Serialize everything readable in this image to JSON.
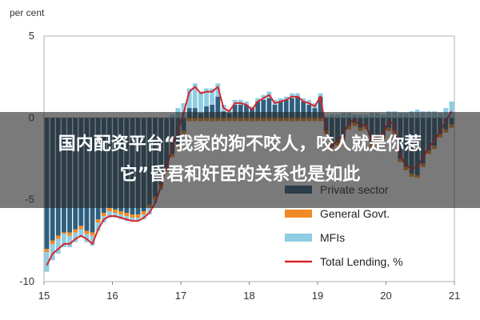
{
  "chart_data": {
    "type": "bar",
    "y_unit_label": "per cent",
    "ylim": [
      -10,
      5
    ],
    "yticks": [
      "5",
      "0",
      "-5",
      "-10"
    ],
    "xticks": [
      "15",
      "16",
      "17",
      "18",
      "19",
      "20",
      "21"
    ],
    "legend_position": "bottom-right",
    "grid": false,
    "colors": {
      "private_sector": "#2e5f7f",
      "general_govt": "#f08a24",
      "mfis": "#8fcde3",
      "total_lending": "#d7262b"
    },
    "series": [
      {
        "name": "Private sector",
        "values": [
          -8.0,
          -7.5,
          -7.2,
          -7.0,
          -7.0,
          -6.8,
          -6.6,
          -6.9,
          -7.0,
          -6.2,
          -5.8,
          -5.5,
          -5.6,
          -5.7,
          -5.8,
          -5.9,
          -5.9,
          -5.7,
          -5.3,
          -4.8,
          -4.1,
          -3.1,
          -2.2,
          -1.6,
          -0.8,
          0.6,
          0.6,
          0.3,
          0.7,
          0.8,
          1.3,
          0.4,
          0.3,
          0.8,
          0.8,
          0.8,
          0.6,
          1.0,
          1.1,
          1.2,
          0.8,
          1.0,
          1.1,
          1.2,
          1.3,
          1.0,
          0.8,
          0.6,
          1.3,
          -0.8,
          -1.8,
          -1.5,
          -1.2,
          -0.5,
          -0.3,
          -0.6,
          -0.5,
          -1.6,
          -1.3,
          -1.1,
          -0.6,
          -0.8,
          -2.5,
          -3.0,
          -3.4,
          -3.5,
          -2.8,
          -2.0,
          -1.7,
          -1.0,
          -0.7,
          -0.4
        ]
      },
      {
        "name": "General Govt.",
        "values": [
          -0.2,
          -0.2,
          -0.2,
          -0.1,
          -0.2,
          -0.2,
          -0.2,
          -0.2,
          -0.2,
          -0.2,
          -0.2,
          -0.2,
          -0.2,
          -0.2,
          -0.2,
          -0.2,
          -0.2,
          -0.2,
          -0.2,
          -0.2,
          -0.2,
          -0.2,
          -0.2,
          -0.2,
          -0.2,
          -0.2,
          -0.2,
          -0.2,
          -0.2,
          -0.2,
          -0.2,
          -0.2,
          -0.2,
          -0.2,
          -0.2,
          -0.2,
          -0.2,
          -0.2,
          -0.2,
          -0.2,
          -0.2,
          -0.2,
          -0.2,
          -0.2,
          -0.2,
          -0.2,
          -0.2,
          -0.2,
          -0.2,
          -0.2,
          -0.2,
          -0.2,
          -0.2,
          -0.2,
          -0.2,
          -0.2,
          -0.2,
          -0.2,
          -0.2,
          -0.2,
          -0.2,
          -0.2,
          -0.2,
          -0.2,
          -0.2,
          -0.2,
          -0.2,
          -0.2,
          -0.2,
          -0.2,
          -0.2,
          -0.2
        ]
      },
      {
        "name": "MFIs",
        "values": [
          -1.2,
          -1.0,
          -0.9,
          -0.8,
          -0.7,
          -0.6,
          -0.5,
          -0.5,
          -0.6,
          -0.5,
          -0.4,
          -0.4,
          -0.3,
          -0.3,
          -0.3,
          -0.2,
          -0.2,
          -0.3,
          -0.4,
          -0.2,
          -0.1,
          0.0,
          0.2,
          0.6,
          0.9,
          1.2,
          1.5,
          1.3,
          1.1,
          1.0,
          0.8,
          0.4,
          0.2,
          0.3,
          0.3,
          0.2,
          0.1,
          0.2,
          0.3,
          0.4,
          0.3,
          0.2,
          0.2,
          0.3,
          0.2,
          0.2,
          0.3,
          0.3,
          0.2,
          0.1,
          0.2,
          0.2,
          0.3,
          0.3,
          0.2,
          0.2,
          0.2,
          0.3,
          0.3,
          0.2,
          0.4,
          0.4,
          0.3,
          0.3,
          0.4,
          0.5,
          0.4,
          0.4,
          0.4,
          0.3,
          0.6,
          1.0
        ]
      },
      {
        "name": "Total Lending, %",
        "type": "line",
        "values": [
          -9.0,
          -8.3,
          -8.0,
          -7.7,
          -7.7,
          -7.4,
          -7.2,
          -7.4,
          -7.7,
          -6.8,
          -6.2,
          -6.0,
          -6.0,
          -6.1,
          -6.2,
          -6.3,
          -6.3,
          -6.1,
          -5.8,
          -5.2,
          -4.2,
          -3.0,
          -1.8,
          -0.8,
          0.3,
          1.6,
          1.9,
          1.5,
          1.6,
          1.6,
          1.9,
          0.6,
          0.4,
          0.9,
          0.9,
          0.8,
          0.5,
          1.0,
          1.2,
          1.4,
          0.9,
          1.0,
          1.1,
          1.3,
          1.3,
          1.0,
          0.9,
          0.7,
          1.3,
          -0.8,
          -1.7,
          -1.4,
          -1.0,
          -0.3,
          -0.1,
          -0.5,
          -0.4,
          -1.5,
          -1.1,
          -1.0,
          -0.2,
          -0.4,
          -2.3,
          -2.9,
          -3.1,
          -3.0,
          -2.4,
          -1.8,
          -1.4,
          -0.8,
          -0.2,
          0.4
        ]
      }
    ]
  },
  "banner": {
    "line1": "国内配资平台“我家的狗不咬人，咬人就是你惹",
    "line2": "它”昏君和奸臣的关系也是如此"
  }
}
